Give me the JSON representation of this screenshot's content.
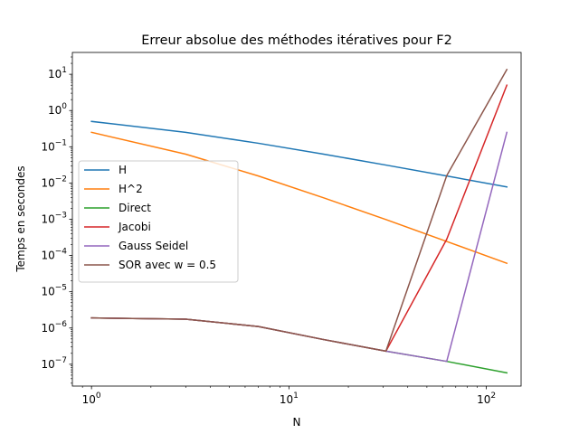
{
  "chart_data": {
    "type": "line",
    "title": "Erreur absolue des méthodes itératives pour F2",
    "xlabel": "N",
    "ylabel": "Temps en secondes",
    "xscale": "log",
    "yscale": "log",
    "xlim": [
      0.8,
      150
    ],
    "ylim": [
      2.5e-08,
      40
    ],
    "grid": false,
    "legend_position": "center-left",
    "x_ticks": [
      {
        "base": "10",
        "exp": "0",
        "value": 1
      },
      {
        "base": "10",
        "exp": "1",
        "value": 10
      },
      {
        "base": "10",
        "exp": "2",
        "value": 100
      }
    ],
    "y_ticks": [
      {
        "base": "10",
        "exp": "−7",
        "value": 1e-07
      },
      {
        "base": "10",
        "exp": "−6",
        "value": 1e-06
      },
      {
        "base": "10",
        "exp": "−5",
        "value": 1e-05
      },
      {
        "base": "10",
        "exp": "−4",
        "value": 0.0001
      },
      {
        "base": "10",
        "exp": "−3",
        "value": 0.001
      },
      {
        "base": "10",
        "exp": "−2",
        "value": 0.01
      },
      {
        "base": "10",
        "exp": "−1",
        "value": 0.1
      },
      {
        "base": "10",
        "exp": "0",
        "value": 1
      },
      {
        "base": "10",
        "exp": "1",
        "value": 10
      }
    ],
    "x": [
      1,
      3,
      7,
      15,
      31,
      63,
      127
    ],
    "series": [
      {
        "name": "H",
        "color": "#1f77b4",
        "values": [
          0.5,
          0.25,
          0.125,
          0.0625,
          0.03125,
          0.015625,
          0.0078125
        ]
      },
      {
        "name": "H^2",
        "color": "#ff7f0e",
        "values": [
          0.25,
          0.0625,
          0.015625,
          0.0039,
          0.00098,
          0.000244,
          6.1e-05
        ]
      },
      {
        "name": "Direct",
        "color": "#2ca02c",
        "values": [
          1.9e-06,
          1.75e-06,
          1.1e-06,
          4.8e-07,
          2.3e-07,
          1.2e-07,
          5.8e-08
        ]
      },
      {
        "name": "Jacobi",
        "color": "#d62728",
        "values": [
          1.9e-06,
          1.75e-06,
          1.1e-06,
          4.8e-07,
          2.3e-07,
          0.00028,
          5.0
        ]
      },
      {
        "name": "Gauss Seidel",
        "color": "#9467bd",
        "values": [
          1.9e-06,
          1.75e-06,
          1.1e-06,
          4.8e-07,
          2.3e-07,
          1.2e-07,
          0.25
        ]
      },
      {
        "name": "SOR avec w = 0.5",
        "color": "#8c564b",
        "values": [
          1.9e-06,
          1.75e-06,
          1.1e-06,
          4.8e-07,
          2.3e-07,
          0.016,
          13.5
        ]
      }
    ]
  }
}
